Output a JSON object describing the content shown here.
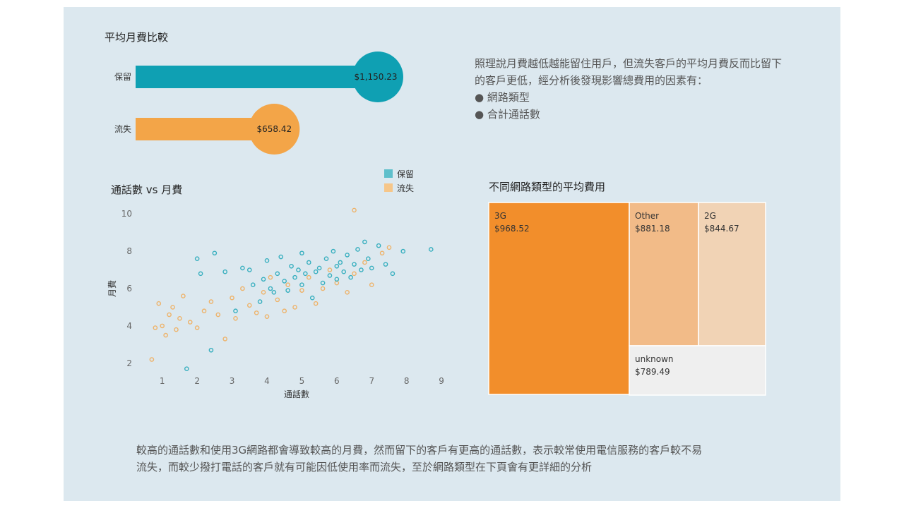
{
  "bar_section": {
    "title": "平均月費比較"
  },
  "scatter_section": {
    "title": "通話數 vs 月費"
  },
  "treemap_section": {
    "title": "不同網路類型的平均費用"
  },
  "notes": {
    "top_line1": "照理說月費越低越能留住用戶，但流失客戶的平均月費反而比留下",
    "top_line2": "的客戶更低，經分析後發現影響總費用的因素有：",
    "bullets": [
      "● 網路類型",
      "● 合計通話數"
    ],
    "bottom_line1": "較高的通話數和使用3G網路都會導致較高的月費，然而留下的客戶有更高的通話數，表示較常使用電信服務的客戶較不易",
    "bottom_line2": "流失，而較少撥打電話的客戶就有可能因低使用率而流失，至於網路類型在下頁會有更詳細的分析"
  },
  "colors": {
    "retain": "#0fa0b3",
    "churn": "#f3a548",
    "panel_bg": "#dce8ef"
  },
  "chart_data": [
    {
      "type": "bar",
      "title": "平均月費比較",
      "categories": [
        "保留",
        "流失"
      ],
      "values": [
        1150.23,
        658.42
      ],
      "value_labels": [
        "$1,150.23",
        "$658.42"
      ],
      "style": "lollipop"
    },
    {
      "type": "scatter",
      "title": "通話數 vs 月費",
      "xlabel": "通話數",
      "ylabel": "月費",
      "xlim": [
        0.5,
        9.2
      ],
      "ylim": [
        1.5,
        10.5
      ],
      "xticks": [
        1,
        2,
        3,
        4,
        5,
        6,
        7,
        8,
        9
      ],
      "yticks": [
        2,
        4,
        6,
        8,
        10
      ],
      "legend": {
        "position": "top-right",
        "entries": [
          "保留",
          "流失"
        ]
      },
      "series": [
        {
          "name": "保留",
          "points": [
            [
              1.7,
              1.7
            ],
            [
              2.0,
              7.6
            ],
            [
              2.1,
              6.8
            ],
            [
              2.4,
              2.7
            ],
            [
              2.5,
              7.9
            ],
            [
              2.8,
              6.9
            ],
            [
              3.1,
              4.8
            ],
            [
              3.3,
              7.1
            ],
            [
              3.5,
              7.0
            ],
            [
              3.6,
              6.2
            ],
            [
              3.8,
              5.3
            ],
            [
              3.9,
              6.5
            ],
            [
              4.0,
              7.5
            ],
            [
              4.1,
              6.0
            ],
            [
              4.2,
              5.8
            ],
            [
              4.3,
              6.8
            ],
            [
              4.4,
              7.7
            ],
            [
              4.5,
              6.4
            ],
            [
              4.6,
              5.9
            ],
            [
              4.7,
              7.2
            ],
            [
              4.8,
              6.6
            ],
            [
              4.9,
              7.0
            ],
            [
              5.0,
              7.9
            ],
            [
              5.0,
              6.2
            ],
            [
              5.1,
              6.8
            ],
            [
              5.2,
              7.4
            ],
            [
              5.3,
              5.5
            ],
            [
              5.4,
              6.9
            ],
            [
              5.5,
              7.1
            ],
            [
              5.6,
              6.3
            ],
            [
              5.7,
              7.6
            ],
            [
              5.8,
              6.7
            ],
            [
              5.9,
              8.0
            ],
            [
              6.0,
              7.2
            ],
            [
              6.0,
              6.5
            ],
            [
              6.1,
              7.4
            ],
            [
              6.2,
              6.9
            ],
            [
              6.3,
              7.8
            ],
            [
              6.4,
              6.6
            ],
            [
              6.5,
              7.3
            ],
            [
              6.6,
              8.1
            ],
            [
              6.7,
              7.0
            ],
            [
              6.8,
              8.5
            ],
            [
              6.9,
              7.6
            ],
            [
              7.0,
              7.1
            ],
            [
              7.2,
              8.3
            ],
            [
              7.4,
              7.3
            ],
            [
              7.6,
              6.8
            ],
            [
              7.9,
              8.0
            ],
            [
              8.7,
              8.1
            ]
          ]
        },
        {
          "name": "流失",
          "points": [
            [
              0.7,
              2.2
            ],
            [
              0.8,
              3.9
            ],
            [
              0.9,
              5.2
            ],
            [
              1.0,
              4.0
            ],
            [
              1.1,
              3.5
            ],
            [
              1.2,
              4.6
            ],
            [
              1.3,
              5.0
            ],
            [
              1.4,
              3.8
            ],
            [
              1.5,
              4.4
            ],
            [
              1.6,
              5.6
            ],
            [
              1.8,
              4.2
            ],
            [
              2.0,
              3.9
            ],
            [
              2.2,
              4.8
            ],
            [
              2.4,
              5.3
            ],
            [
              2.6,
              4.6
            ],
            [
              2.8,
              3.3
            ],
            [
              3.0,
              5.5
            ],
            [
              3.1,
              4.4
            ],
            [
              3.3,
              6.0
            ],
            [
              3.5,
              5.1
            ],
            [
              3.7,
              4.7
            ],
            [
              3.9,
              5.8
            ],
            [
              4.0,
              4.5
            ],
            [
              4.1,
              6.6
            ],
            [
              4.3,
              5.4
            ],
            [
              4.5,
              4.8
            ],
            [
              4.6,
              6.2
            ],
            [
              4.8,
              5.0
            ],
            [
              5.0,
              5.9
            ],
            [
              5.2,
              6.6
            ],
            [
              5.4,
              5.2
            ],
            [
              5.6,
              6.0
            ],
            [
              5.8,
              7.0
            ],
            [
              6.0,
              6.3
            ],
            [
              6.3,
              5.8
            ],
            [
              6.5,
              6.8
            ],
            [
              6.8,
              7.4
            ],
            [
              7.0,
              6.2
            ],
            [
              7.3,
              7.9
            ],
            [
              7.5,
              8.2
            ],
            [
              6.5,
              10.2
            ]
          ]
        }
      ]
    },
    {
      "type": "treemap",
      "title": "不同網路類型的平均費用",
      "items": [
        {
          "label": "3G",
          "value": 968.52,
          "value_label": "$968.52",
          "color": "#f28e2b"
        },
        {
          "label": "Other",
          "value": 881.18,
          "value_label": "$881.18",
          "color": "#f2bb88"
        },
        {
          "label": "2G",
          "value": 844.67,
          "value_label": "$844.67",
          "color": "#f1d3b5"
        },
        {
          "label": "unknown",
          "value": 789.49,
          "value_label": "$789.49",
          "color": "#efefef"
        }
      ]
    }
  ]
}
